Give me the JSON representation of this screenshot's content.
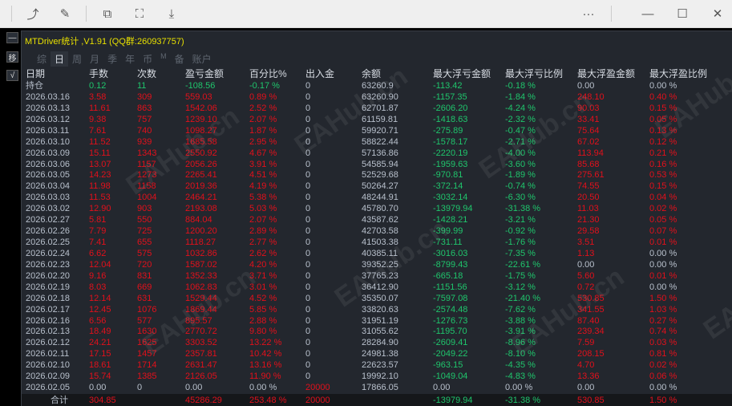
{
  "window": {
    "title": "MTDriver统计 ,V1.91 (QQ群:260937757)",
    "more_label": "···",
    "minimize_label": "—",
    "maximize_label": "☐",
    "close_label": "✕"
  },
  "toolbar": {
    "icons": [
      "rotate-icon",
      "edit-icon",
      "translate-icon",
      "screenshot-icon",
      "download-icon"
    ]
  },
  "side": {
    "buttons": [
      "—",
      "移",
      "√"
    ]
  },
  "tabs": [
    {
      "label": "综"
    },
    {
      "label": "日",
      "active": true
    },
    {
      "label": "周"
    },
    {
      "label": "月"
    },
    {
      "label": "季"
    },
    {
      "label": "年"
    },
    {
      "label": "币"
    },
    {
      "label": "M"
    },
    {
      "label": "备"
    },
    {
      "label": "账户"
    }
  ],
  "watermark": "EAHub.cn",
  "colors": {
    "profit": "#e2101b",
    "loss": "#1fc56c",
    "neutral": "#b8c0cc",
    "title": "#e8e000"
  },
  "table": {
    "headers": [
      "日期",
      "手数",
      "次数",
      "盈亏金额",
      "百分比%",
      "出入金",
      "余额",
      "最大浮亏金额",
      "最大浮亏比例",
      "最大浮盈金额",
      "最大浮盈比例"
    ],
    "rows": [
      {
        "tone": "loss",
        "cells": [
          "持仓",
          "0.12",
          "11",
          "-108.56",
          "-0.17 %",
          "0",
          "63260.9",
          "-113.42",
          "-0.18 %",
          "0.00",
          "0.00 %"
        ]
      },
      {
        "tone": "profit",
        "cells": [
          "2026.03.16",
          "3.58",
          "309",
          "559.03",
          "0.89 %",
          "0",
          "63260.90",
          "-1157.35",
          "-1.84 %",
          "248.10",
          "0.40 %"
        ]
      },
      {
        "tone": "profit",
        "cells": [
          "2026.03.13",
          "11.61",
          "863",
          "1542.06",
          "2.52 %",
          "0",
          "62701.87",
          "-2606.20",
          "-4.24 %",
          "90.03",
          "0.15 %"
        ]
      },
      {
        "tone": "profit",
        "cells": [
          "2026.03.12",
          "9.38",
          "757",
          "1239.10",
          "2.07 %",
          "0",
          "61159.81",
          "-1418.63",
          "-2.32 %",
          "33.41",
          "0.05 %"
        ]
      },
      {
        "tone": "profit",
        "cells": [
          "2026.03.11",
          "7.61",
          "740",
          "1098.27",
          "1.87 %",
          "0",
          "59920.71",
          "-275.89",
          "-0.47 %",
          "75.64",
          "0.13 %"
        ]
      },
      {
        "tone": "profit",
        "cells": [
          "2026.03.10",
          "11.52",
          "939",
          "1685.58",
          "2.95 %",
          "0",
          "58822.44",
          "-1578.17",
          "-2.71 %",
          "67.02",
          "0.12 %"
        ]
      },
      {
        "tone": "profit",
        "cells": [
          "2026.03.09",
          "15.11",
          "1343",
          "2550.92",
          "4.67 %",
          "0",
          "57136.86",
          "-2220.19",
          "-4.00 %",
          "113.94",
          "0.21 %"
        ]
      },
      {
        "tone": "profit",
        "cells": [
          "2026.03.06",
          "13.07",
          "1157",
          "2056.26",
          "3.91 %",
          "0",
          "54585.94",
          "-1959.63",
          "-3.60 %",
          "85.68",
          "0.16 %"
        ]
      },
      {
        "tone": "profit",
        "cells": [
          "2026.03.05",
          "14.23",
          "1273",
          "2265.41",
          "4.51 %",
          "0",
          "52529.68",
          "-970.81",
          "-1.89 %",
          "275.61",
          "0.53 %"
        ]
      },
      {
        "tone": "profit",
        "cells": [
          "2026.03.04",
          "11.98",
          "1158",
          "2019.36",
          "4.19 %",
          "0",
          "50264.27",
          "-372.14",
          "-0.74 %",
          "74.55",
          "0.15 %"
        ]
      },
      {
        "tone": "profit",
        "cells": [
          "2026.03.03",
          "11.53",
          "1004",
          "2464.21",
          "5.38 %",
          "0",
          "48244.91",
          "-3032.14",
          "-6.30 %",
          "20.50",
          "0.04 %"
        ]
      },
      {
        "tone": "profit",
        "cells": [
          "2026.03.02",
          "12.90",
          "903",
          "2193.08",
          "5.03 %",
          "0",
          "45780.70",
          "-13979.94",
          "-31.38 %",
          "11.03",
          "0.02 %"
        ]
      },
      {
        "tone": "profit",
        "cells": [
          "2026.02.27",
          "5.81",
          "550",
          "884.04",
          "2.07 %",
          "0",
          "43587.62",
          "-1428.21",
          "-3.21 %",
          "21.30",
          "0.05 %"
        ]
      },
      {
        "tone": "profit",
        "cells": [
          "2026.02.26",
          "7.79",
          "725",
          "1200.20",
          "2.89 %",
          "0",
          "42703.58",
          "-399.99",
          "-0.92 %",
          "29.58",
          "0.07 %"
        ]
      },
      {
        "tone": "profit",
        "cells": [
          "2026.02.25",
          "7.41",
          "655",
          "1118.27",
          "2.77 %",
          "0",
          "41503.38",
          "-731.11",
          "-1.76 %",
          "3.51",
          "0.01 %"
        ]
      },
      {
        "tone": "profit",
        "cells": [
          "2026.02.24",
          "6.62",
          "575",
          "1032.86",
          "2.62 %",
          "0",
          "40385.11",
          "-3016.03",
          "-7.35 %",
          "1.13",
          "0.00 %"
        ]
      },
      {
        "tone": "profit",
        "cells": [
          "2026.02.23",
          "12.04",
          "720",
          "1587.02",
          "4.20 %",
          "0",
          "39352.25",
          "-8799.43",
          "-22.61 %",
          "0.00",
          "0.00 %"
        ]
      },
      {
        "tone": "profit",
        "cells": [
          "2026.02.20",
          "9.16",
          "831",
          "1352.33",
          "3.71 %",
          "0",
          "37765.23",
          "-665.18",
          "-1.75 %",
          "5.60",
          "0.01 %"
        ]
      },
      {
        "tone": "profit",
        "cells": [
          "2026.02.19",
          "8.03",
          "669",
          "1062.83",
          "3.01 %",
          "0",
          "36412.90",
          "-1151.56",
          "-3.12 %",
          "0.72",
          "0.00 %"
        ]
      },
      {
        "tone": "profit",
        "cells": [
          "2026.02.18",
          "12.14",
          "631",
          "1529.44",
          "4.52 %",
          "0",
          "35350.07",
          "-7597.08",
          "-21.40 %",
          "530.85",
          "1.50 %"
        ]
      },
      {
        "tone": "profit",
        "cells": [
          "2026.02.17",
          "12.45",
          "1076",
          "1869.44",
          "5.85 %",
          "0",
          "33820.63",
          "-2574.48",
          "-7.62 %",
          "341.55",
          "1.03 %"
        ]
      },
      {
        "tone": "profit",
        "cells": [
          "2026.02.16",
          "6.56",
          "577",
          "895.57",
          "2.88 %",
          "0",
          "31951.19",
          "-1276.73",
          "-3.88 %",
          "87.40",
          "0.27 %"
        ]
      },
      {
        "tone": "profit",
        "cells": [
          "2026.02.13",
          "18.49",
          "1630",
          "2770.72",
          "9.80 %",
          "0",
          "31055.62",
          "-1195.70",
          "-3.91 %",
          "239.34",
          "0.74 %"
        ]
      },
      {
        "tone": "profit",
        "cells": [
          "2026.02.12",
          "24.21",
          "1625",
          "3303.52",
          "13.22 %",
          "0",
          "28284.90",
          "-2609.41",
          "-8.96 %",
          "7.59",
          "0.03 %"
        ]
      },
      {
        "tone": "profit",
        "cells": [
          "2026.02.11",
          "17.15",
          "1457",
          "2357.81",
          "10.42 %",
          "0",
          "24981.38",
          "-2049.22",
          "-8.10 %",
          "208.15",
          "0.81 %"
        ]
      },
      {
        "tone": "profit",
        "cells": [
          "2026.02.10",
          "18.61",
          "1714",
          "2631.47",
          "13.16 %",
          "0",
          "22623.57",
          "-963.15",
          "-4.35 %",
          "4.70",
          "0.02 %"
        ]
      },
      {
        "tone": "profit",
        "cells": [
          "2026.02.09",
          "15.74",
          "1385",
          "2126.05",
          "11.90 %",
          "0",
          "19992.10",
          "-1049.04",
          "-4.83 %",
          "13.36",
          "0.06 %"
        ]
      },
      {
        "tone": "flat",
        "cells": [
          "2026.02.05",
          "0.00",
          "0",
          "0.00",
          "0.00 %",
          "20000",
          "17866.05",
          "0.00",
          "0.00 %",
          "0.00",
          "0.00 %"
        ]
      }
    ],
    "total": {
      "cells": [
        "合计",
        "304.85",
        "",
        "45286.29",
        "253.48 %",
        "20000",
        "",
        "-13979.94",
        "-31.38 %",
        "530.85",
        "1.50 %"
      ]
    }
  }
}
